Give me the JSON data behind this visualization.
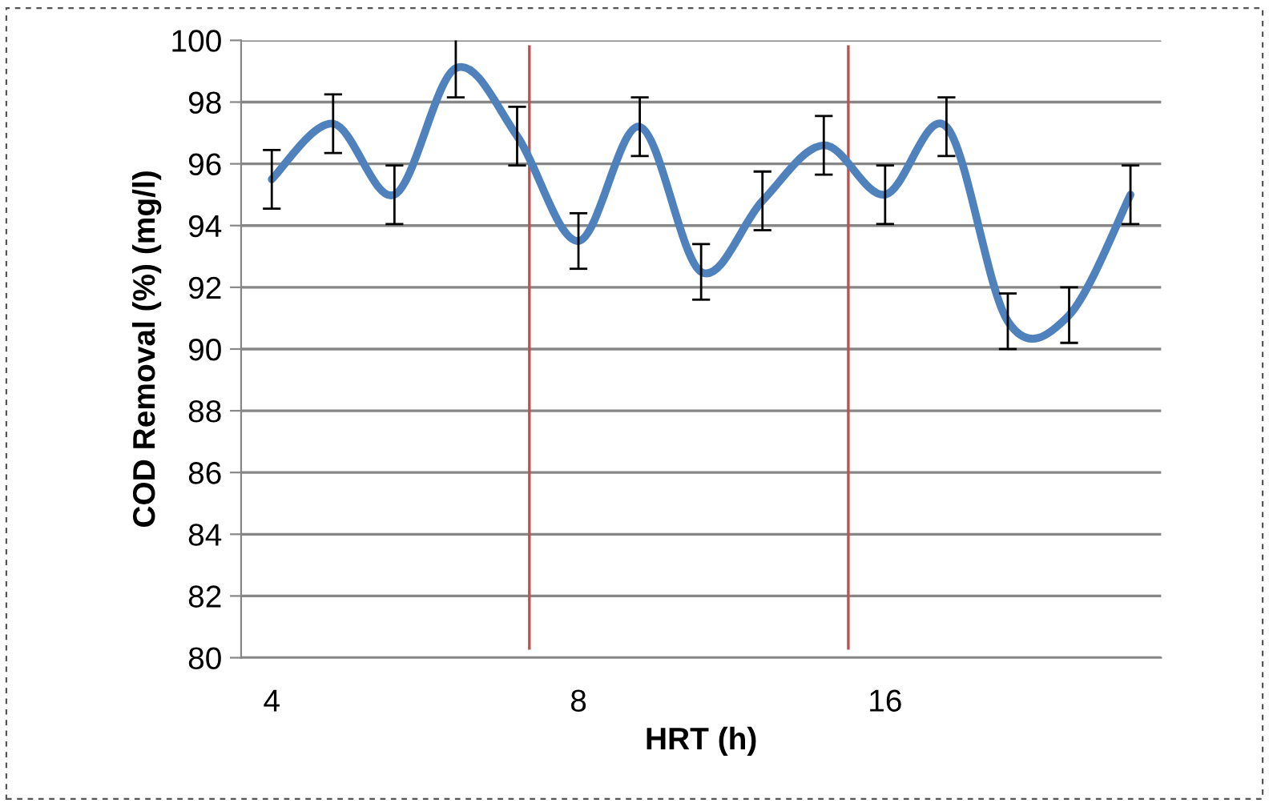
{
  "chart_data": {
    "type": "line",
    "xlabel": "HRT (h)",
    "ylabel": "COD Removal (%) (mg/l)",
    "categories": [
      "4",
      null,
      null,
      null,
      null,
      "8",
      null,
      null,
      null,
      null,
      "16",
      null,
      null,
      null,
      null
    ],
    "series": [
      {
        "color": "#4f81bd",
        "values": [
          95.5,
          97.3,
          95.0,
          99.1,
          96.9,
          93.5,
          97.2,
          92.5,
          94.8,
          96.6,
          95.0,
          97.2,
          90.9,
          91.1,
          95.0
        ],
        "errors": [
          0.95,
          0.95,
          0.95,
          0.95,
          0.95,
          0.9,
          0.95,
          0.9,
          0.95,
          0.95,
          0.95,
          0.95,
          0.9,
          0.9,
          0.95
        ]
      }
    ],
    "ylim": [
      80,
      100
    ],
    "yticks": [
      80,
      82,
      84,
      86,
      88,
      90,
      92,
      94,
      96,
      98,
      100
    ],
    "grid": "y",
    "marker": "none",
    "line_style": "solid"
  }
}
